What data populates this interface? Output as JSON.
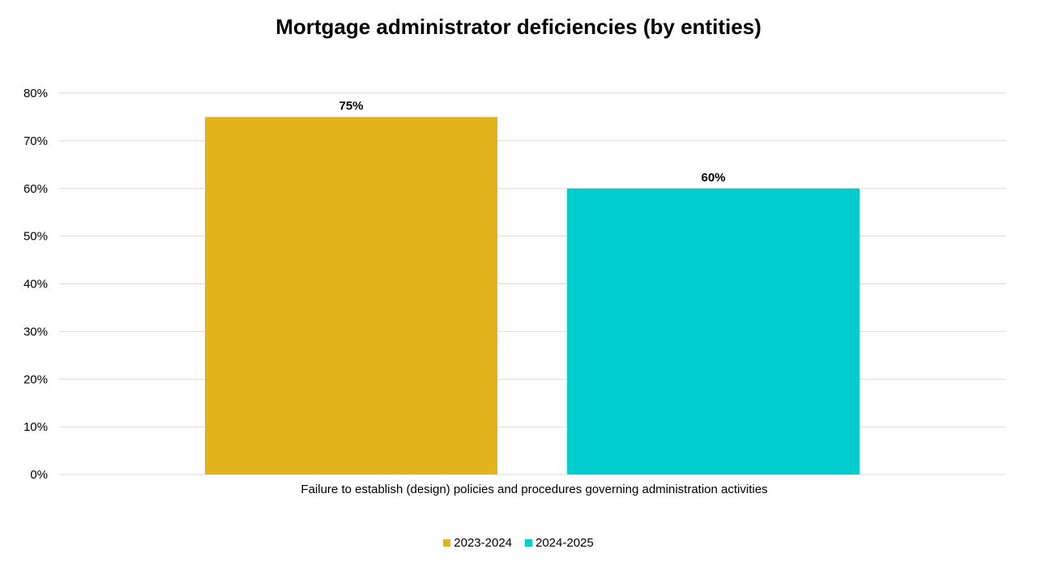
{
  "chart_data": {
    "type": "bar",
    "title": "Mortgage administrator deficiencies (by entities)",
    "categories": [
      "Failure to establish (design) policies and procedures governing administration activities"
    ],
    "series": [
      {
        "name": "2023-2024",
        "values": [
          75
        ],
        "color": "#E3B31B",
        "label": "75%"
      },
      {
        "name": "2024-2025",
        "values": [
          60
        ],
        "color": "#00CDCD",
        "label": "60%"
      }
    ],
    "ylim": [
      0,
      80
    ],
    "yticks": [
      0,
      10,
      20,
      30,
      40,
      50,
      60,
      70,
      80
    ],
    "ytick_labels": [
      "0%",
      "10%",
      "20%",
      "30%",
      "40%",
      "50%",
      "60%",
      "70%",
      "80%"
    ],
    "grid": true,
    "legend": "bottom-center",
    "gridline_color": "#D9D9D9"
  }
}
